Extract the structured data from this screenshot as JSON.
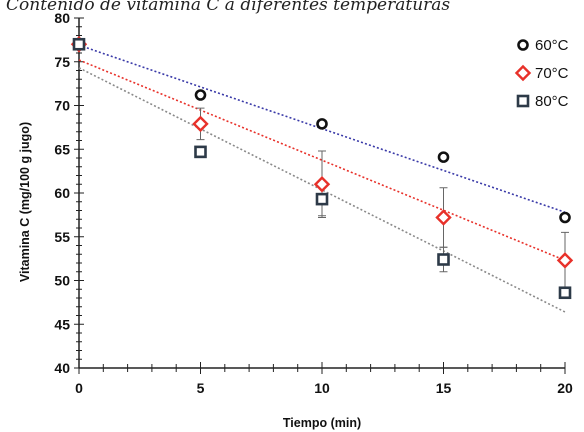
{
  "chart_data": {
    "type": "scatter",
    "title": "Contenido de vitamina C a diferentes temperaturas",
    "xlabel": "Tiempo (min)",
    "ylabel": "Vitamina C (mg/100 g jugo)",
    "xlim": [
      0,
      20
    ],
    "ylim": [
      40,
      80
    ],
    "x_ticks": [
      0,
      5,
      10,
      15,
      20
    ],
    "y_ticks": [
      40,
      45,
      50,
      55,
      60,
      65,
      70,
      75,
      80
    ],
    "legend_position": "top-right",
    "grid": false,
    "series": [
      {
        "name": "60°C",
        "marker": "circle",
        "color": "#111111",
        "trendline_color": "#3a3aa8",
        "x": [
          0,
          5,
          10,
          15,
          20
        ],
        "y": [
          77.0,
          71.2,
          67.9,
          64.1,
          57.2
        ],
        "error": [
          0.5,
          0.5,
          0.5,
          0.5,
          0.5
        ],
        "trendline": [
          76.9,
          57.8
        ]
      },
      {
        "name": "70°C",
        "marker": "diamond",
        "color": "#e8312a",
        "trendline_color": "#e8312a",
        "x": [
          0,
          5,
          10,
          15,
          20
        ],
        "y": [
          77.0,
          67.9,
          61.0,
          57.2,
          52.3
        ],
        "error": [
          0.5,
          1.8,
          3.8,
          3.4,
          3.2
        ],
        "trendline": [
          75.2,
          52.3
        ]
      },
      {
        "name": "80°C",
        "marker": "square",
        "color": "#2d3a48",
        "trendline_color": "#8a8a8a",
        "x": [
          0,
          5,
          10,
          15,
          20
        ],
        "y": [
          77.0,
          64.7,
          59.3,
          52.4,
          48.6
        ],
        "error": [
          0.5,
          0.6,
          1.9,
          1.4,
          0.5
        ],
        "trendline": [
          74.3,
          46.4
        ]
      }
    ]
  }
}
